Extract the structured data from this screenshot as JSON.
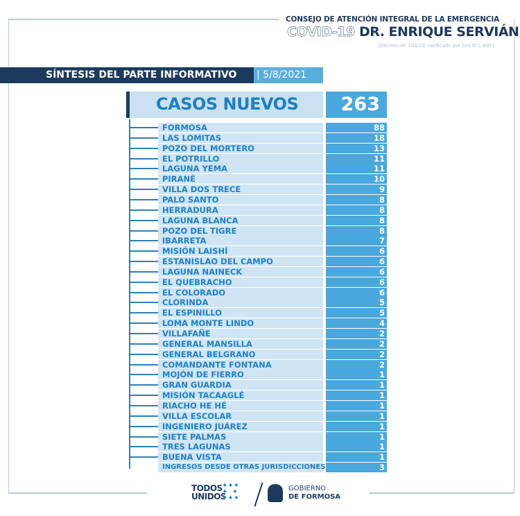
{
  "header": {
    "council": "CONSEJO DE ATENCIÓN INTEGRAL DE LA EMERGENCIA",
    "covid": "COVID-19",
    "doctor": "DR. ENRIQUE SERVIÁN",
    "decree": "(Decreto Nº 100/20, ratificado por Ley Nº1.697)"
  },
  "banner": {
    "title": "SÍNTESIS DEL PARTE INFORMATIVO",
    "date": "| 5/8/2021"
  },
  "summary": {
    "label": "CASOS NUEVOS",
    "total": "263"
  },
  "rows": [
    {
      "name": "FORMOSA",
      "value": "88"
    },
    {
      "name": "LAS LOMITAS",
      "value": "18"
    },
    {
      "name": "POZO DEL MORTERO",
      "value": "13"
    },
    {
      "name": "EL POTRILLO",
      "value": "11"
    },
    {
      "name": "LAGUNA YEMA",
      "value": "11"
    },
    {
      "name": "PIRANÉ",
      "value": "10"
    },
    {
      "name": "VILLA DOS TRECE",
      "value": "9"
    },
    {
      "name": "PALO SANTO",
      "value": "8"
    },
    {
      "name": "HERRADURA",
      "value": "8"
    },
    {
      "name": "LAGUNA BLANCA",
      "value": "8"
    },
    {
      "name": "POZO DEL TIGRE",
      "value": "8"
    },
    {
      "name": "IBARRETA",
      "value": "7"
    },
    {
      "name": "MISIÓN LAISHÍ",
      "value": "6"
    },
    {
      "name": "ESTANISLAO DEL CAMPO",
      "value": "6"
    },
    {
      "name": "LAGUNA NAINECK",
      "value": "6"
    },
    {
      "name": "EL QUEBRACHO",
      "value": "6"
    },
    {
      "name": "EL COLORADO",
      "value": "6"
    },
    {
      "name": "CLORINDA",
      "value": "5"
    },
    {
      "name": "EL ESPINILLO",
      "value": "5"
    },
    {
      "name": "LOMA MONTE LINDO",
      "value": "4"
    },
    {
      "name": "VILLAFAÑE",
      "value": "2"
    },
    {
      "name": "GENERAL MANSILLA",
      "value": "2"
    },
    {
      "name": "GENERAL BELGRANO",
      "value": "2"
    },
    {
      "name": "COMANDANTE FONTANA",
      "value": "2"
    },
    {
      "name": "MOJÓN DE FIERRO",
      "value": "1"
    },
    {
      "name": "GRAN GUARDIA",
      "value": "1"
    },
    {
      "name": "MISIÓN TACAAGLÉ",
      "value": "1"
    },
    {
      "name": "RIACHO HE HÉ",
      "value": "1"
    },
    {
      "name": "VILLA ESCOLAR",
      "value": "1"
    },
    {
      "name": "INGENIERO JUÁREZ",
      "value": "1"
    },
    {
      "name": "SIETE PALMAS",
      "value": "1"
    },
    {
      "name": "TRES LAGUNAS",
      "value": "1"
    },
    {
      "name": "BUENA VISTA",
      "value": "1"
    },
    {
      "name": "INGRESOS DESDE OTRAS JURISDICCIONES",
      "value": "3"
    }
  ],
  "footer": {
    "logo1_line1": "TODOS",
    "logo1_line2": "UNIDOS",
    "logo2_line1": "GOBIERNO",
    "logo2_line2": "DE FORMOSA"
  }
}
